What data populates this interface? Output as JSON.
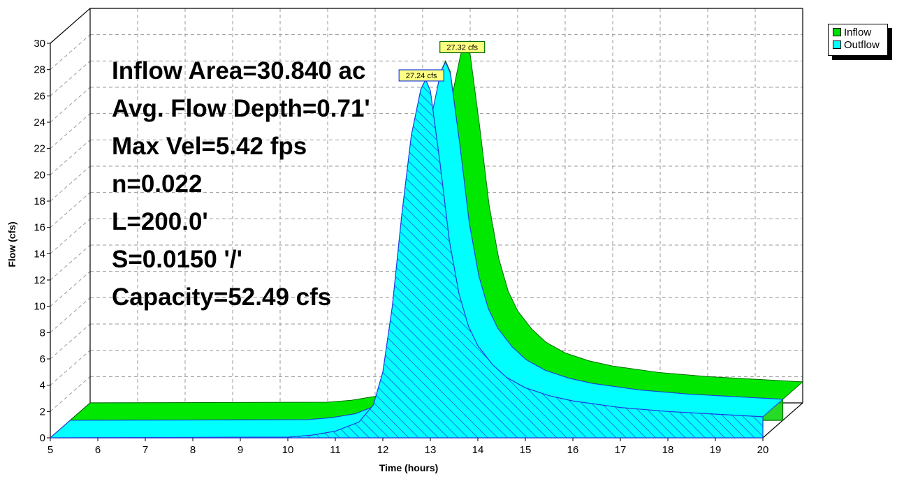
{
  "chart_data": {
    "type": "area",
    "style": "3d-ribbon",
    "xlabel": "Time  (hours)",
    "ylabel": "Flow  (cfs)",
    "xlim": [
      5,
      20
    ],
    "ylim": [
      0,
      30
    ],
    "x_ticks": [
      "5",
      "6",
      "7",
      "8",
      "9",
      "10",
      "11",
      "12",
      "13",
      "14",
      "15",
      "16",
      "17",
      "18",
      "19",
      "20"
    ],
    "y_ticks": [
      "0",
      "2",
      "4",
      "6",
      "8",
      "10",
      "12",
      "14",
      "16",
      "18",
      "20",
      "22",
      "24",
      "26",
      "28",
      "30"
    ],
    "grid": true,
    "legend_position": "top-right",
    "annotations": [
      "Inflow Area=30.840 ac",
      "Avg. Flow Depth=0.71'",
      "Max Vel=5.42 fps",
      "n=0.022",
      "L=200.0'",
      "S=0.0150 '/'",
      "Capacity=52.49 cfs"
    ],
    "series": [
      {
        "name": "Inflow",
        "color": "#00e000",
        "peak_label": "27.32 cfs",
        "x": [
          5,
          10,
          10.5,
          11,
          11.5,
          11.8,
          12.0,
          12.2,
          12.4,
          12.6,
          12.8,
          12.9,
          13.0,
          13.2,
          13.4,
          13.6,
          13.8,
          14.0,
          14.3,
          14.6,
          15.0,
          15.5,
          16.0,
          17.0,
          18.0,
          19.0,
          20.0
        ],
        "y": [
          0.0,
          0.05,
          0.2,
          0.5,
          1.2,
          2.5,
          5.0,
          10.0,
          17.0,
          23.0,
          26.5,
          27.32,
          26.5,
          21.0,
          15.0,
          11.0,
          8.5,
          7.0,
          5.6,
          4.6,
          3.8,
          3.2,
          2.8,
          2.3,
          2.0,
          1.8,
          1.6
        ]
      },
      {
        "name": "Outflow",
        "color": "#00ffff",
        "peak_label": "27.24 cfs",
        "x": [
          5,
          10,
          10.5,
          11,
          11.5,
          11.8,
          12.0,
          12.2,
          12.4,
          12.6,
          12.8,
          12.9,
          13.0,
          13.2,
          13.4,
          13.6,
          13.8,
          14.0,
          14.3,
          14.6,
          15.0,
          15.5,
          16.0,
          17.0,
          18.0,
          19.0,
          20.0
        ],
        "y": [
          0.0,
          0.05,
          0.2,
          0.5,
          1.2,
          2.5,
          5.0,
          10.0,
          17.0,
          23.0,
          26.5,
          27.24,
          26.4,
          21.0,
          15.0,
          11.0,
          8.5,
          7.0,
          5.6,
          4.6,
          3.8,
          3.2,
          2.8,
          2.3,
          2.0,
          1.8,
          1.6
        ]
      }
    ]
  }
}
